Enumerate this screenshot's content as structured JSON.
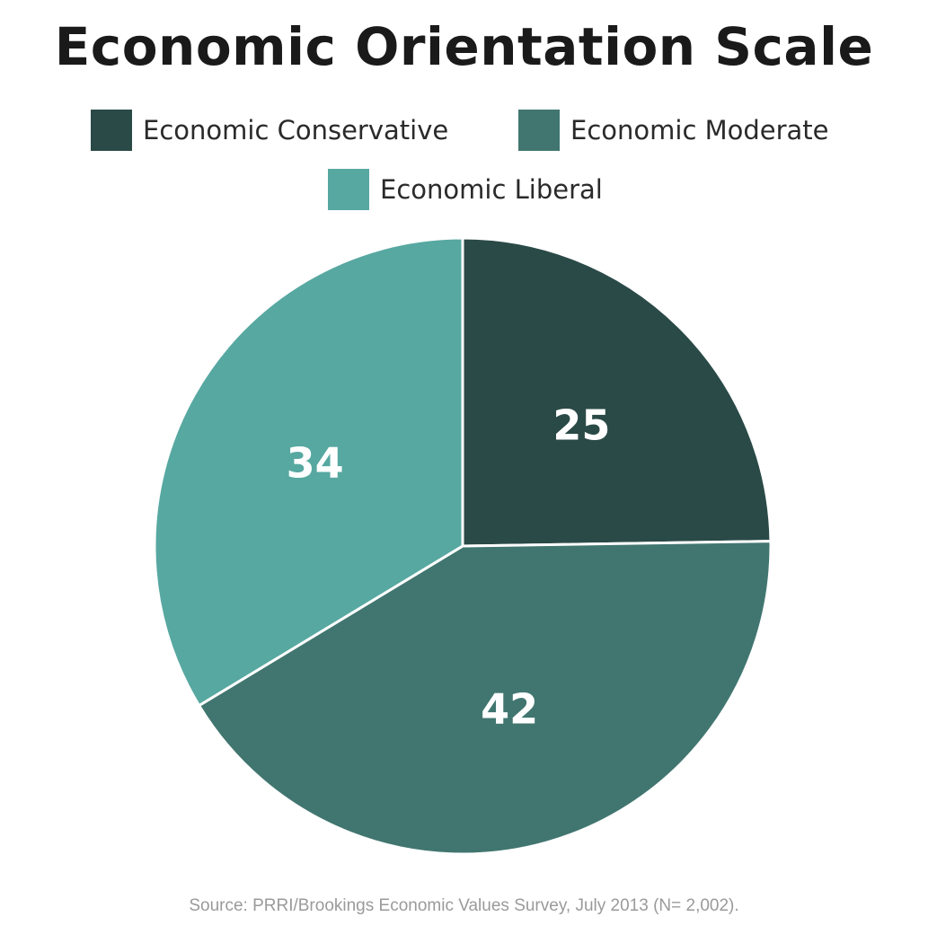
{
  "chart_data": {
    "type": "pie",
    "title": "Economic Orientation Scale",
    "series": [
      {
        "name": "Economic Conservative",
        "value": 25,
        "color": "#2a4a47"
      },
      {
        "name": "Economic Moderate",
        "value": 42,
        "color": "#417670"
      },
      {
        "name": "Economic Liberal",
        "value": 34,
        "color": "#57a8a1"
      }
    ],
    "legend_position": "top",
    "data_labels": [
      "25",
      "42",
      "34"
    ]
  },
  "source": "Source: PRRI/Brookings Economic Values Survey, July 2013 (N= 2,002)."
}
